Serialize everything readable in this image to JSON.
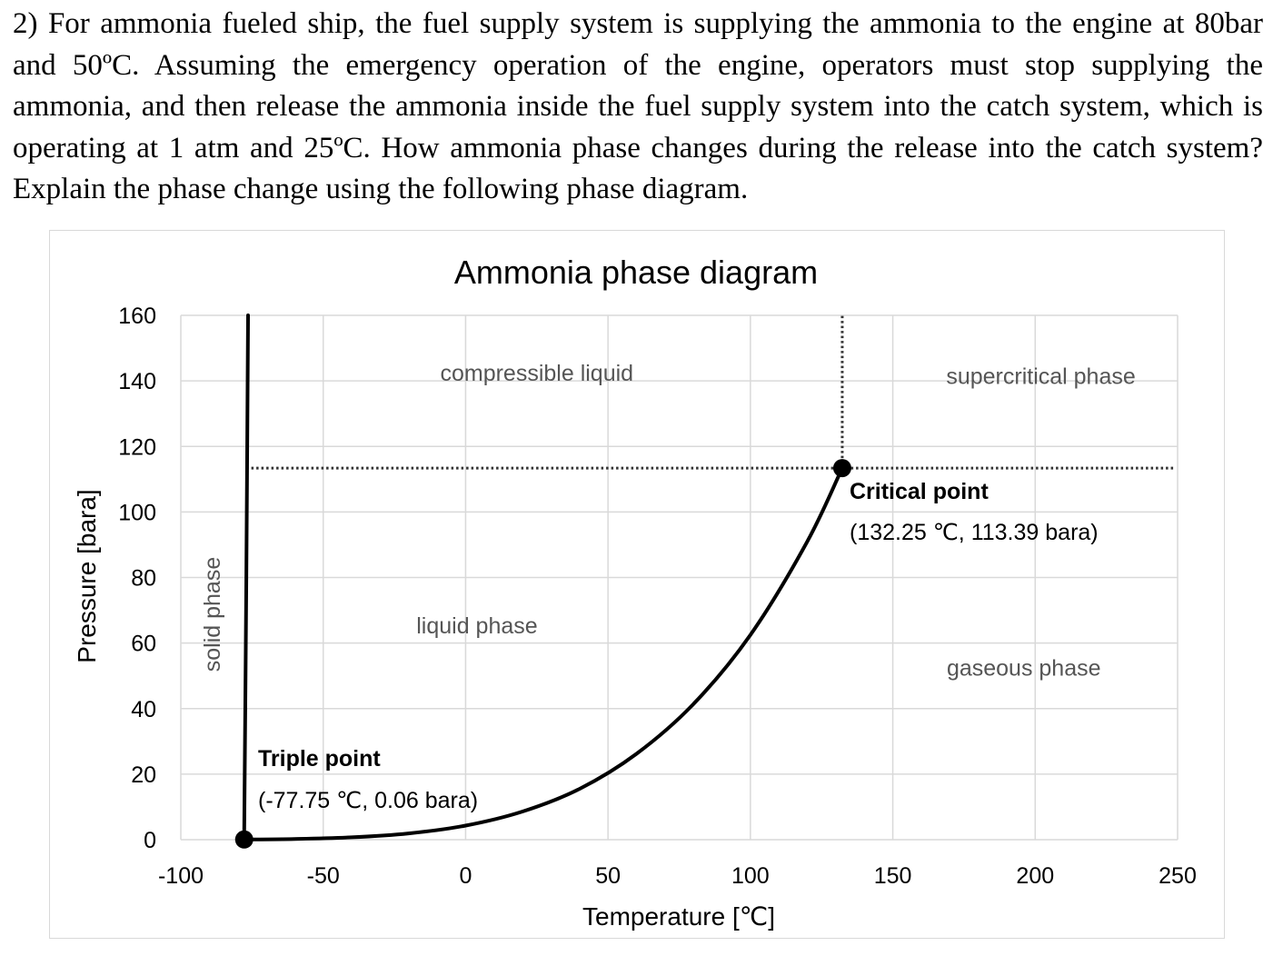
{
  "question": {
    "text": "2) For ammonia fueled ship, the fuel supply system is supplying the ammonia to the engine at 80bar and 50ºC. Assuming the emergency operation of the engine, operators must stop supplying the ammonia, and then release the ammonia inside the fuel supply system into the catch system, which is operating at 1 atm and 25ºC. How ammonia phase changes during the release into the catch system? Explain the phase change using the following phase diagram."
  },
  "chart_data": {
    "type": "line",
    "title": "Ammonia phase diagram",
    "xlabel": "Temperature [℃]",
    "ylabel": "Pressure [bara]",
    "xlim": [
      -100,
      250
    ],
    "ylim": [
      0,
      160
    ],
    "x_ticks": [
      -100,
      -50,
      0,
      50,
      100,
      150,
      200,
      250
    ],
    "y_ticks": [
      0,
      20,
      40,
      60,
      80,
      100,
      120,
      140,
      160
    ],
    "x_tick_labels": [
      "-100",
      "-50",
      "0",
      "50",
      "100",
      "150",
      "200",
      "250"
    ],
    "y_tick_labels": [
      "0",
      "20",
      "40",
      "60",
      "80",
      "100",
      "120",
      "140",
      "160"
    ],
    "grid": true,
    "series": [
      {
        "role": "vaporization curve",
        "color": "#000000",
        "x": [
          -77.75,
          -60,
          -40,
          -20,
          0,
          20,
          40,
          60,
          80,
          100,
          120,
          132.25
        ],
        "y": [
          0.06,
          0.22,
          0.72,
          1.9,
          4.3,
          8.6,
          15.5,
          26.2,
          41.4,
          62.5,
          91.0,
          113.39
        ]
      },
      {
        "role": "melting curve",
        "color": "#000000",
        "x": [
          -77.75,
          -77.0,
          -76.4
        ],
        "y": [
          0.06,
          80,
          160
        ]
      }
    ],
    "reference_lines": [
      {
        "orientation": "horizontal",
        "value": 113.39,
        "from": -77.0,
        "to": 250,
        "style": "dotted"
      },
      {
        "orientation": "vertical",
        "value": 132.25,
        "from": 113.39,
        "to": 160,
        "style": "dotted"
      }
    ],
    "points": [
      {
        "name": "Triple point",
        "x": -77.75,
        "y": 0.06,
        "label": "Triple point",
        "sublabel": "(-77.75 ℃, 0.06 bara)"
      },
      {
        "name": "Critical point",
        "x": 132.25,
        "y": 113.39,
        "label": "Critical point",
        "sublabel": "(132.25 ℃, 113.39 bara)"
      }
    ],
    "region_labels": [
      {
        "text": "compressible liquid",
        "x": 25,
        "y": 140
      },
      {
        "text": "supercritical phase",
        "x": 202,
        "y": 139
      },
      {
        "text": "liquid phase",
        "x": 4,
        "y": 63
      },
      {
        "text": "gaseous phase",
        "x": 196,
        "y": 50
      },
      {
        "text": "solid phase",
        "x": -88,
        "y": 66,
        "rotated": true
      }
    ]
  }
}
